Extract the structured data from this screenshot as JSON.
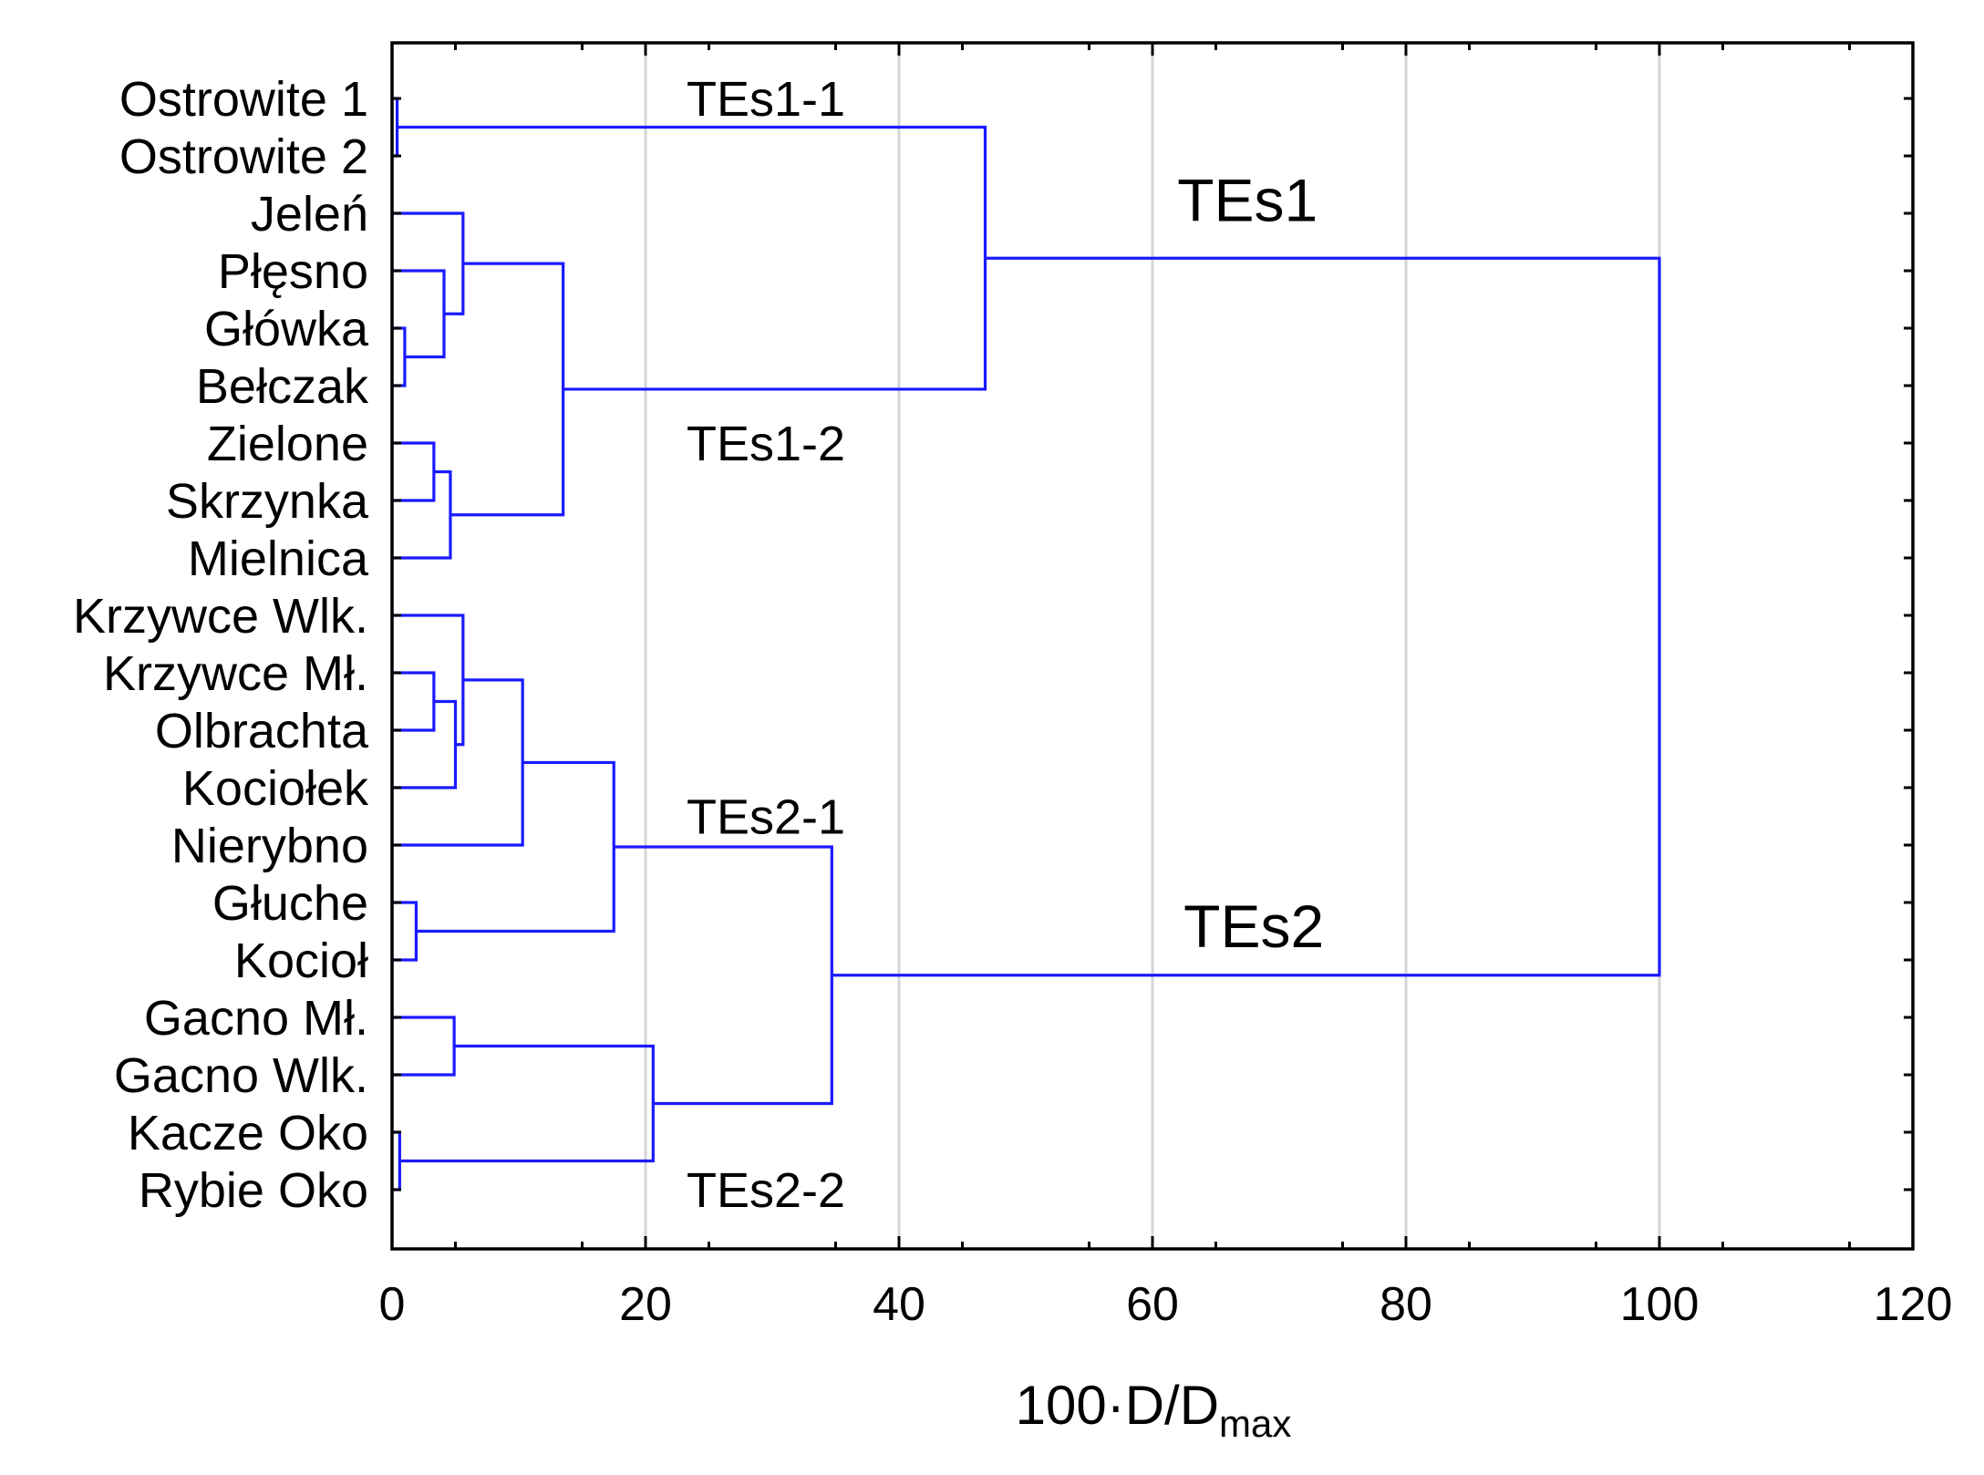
{
  "chart_data": {
    "type": "dendrogram",
    "orientation": "horizontal",
    "xlabel_main": "100·D/D",
    "xlabel_sub": "max",
    "xlim": [
      0,
      120
    ],
    "xticks": [
      0,
      20,
      40,
      60,
      80,
      100,
      120
    ],
    "grid": "vertical",
    "leaves": [
      "Ostrowite 1",
      "Ostrowite 2",
      "Jeleń",
      "Płęsno",
      "Główka",
      "Bełczak",
      "Zielone",
      "Skrzynka",
      "Mielnica",
      "Krzywce Wlk.",
      "Krzywce Mł.",
      "Olbrachta",
      "Kociołek",
      "Nierybno",
      "Głuche",
      "Kocioł",
      "Gacno Mł.",
      "Gacno Wlk.",
      "Kacze Oko",
      "Rybie Oko"
    ],
    "merges": [
      {
        "left": "L0",
        "right": "L1",
        "height": 0.4,
        "id": "C1"
      },
      {
        "left": "L4",
        "right": "L5",
        "height": 1.0,
        "id": "C2"
      },
      {
        "left": "L3",
        "right": "C2",
        "height": 4.1,
        "id": "C3"
      },
      {
        "left": "L2",
        "right": "C3",
        "height": 5.6,
        "id": "C4"
      },
      {
        "left": "L6",
        "right": "L7",
        "height": 3.3,
        "id": "C5"
      },
      {
        "left": "C5",
        "right": "L8",
        "height": 4.6,
        "id": "C6"
      },
      {
        "left": "C4",
        "right": "C6",
        "height": 13.5,
        "id": "C7"
      },
      {
        "left": "C1",
        "right": "C7",
        "height": 46.8,
        "id": "C8"
      },
      {
        "left": "L10",
        "right": "L11",
        "height": 3.3,
        "id": "C9"
      },
      {
        "left": "C9",
        "right": "L12",
        "height": 5.0,
        "id": "C10"
      },
      {
        "left": "L9",
        "right": "C10",
        "height": 5.6,
        "id": "C11"
      },
      {
        "left": "C11",
        "right": "L13",
        "height": 10.3,
        "id": "C12"
      },
      {
        "left": "L14",
        "right": "L15",
        "height": 1.9,
        "id": "C13"
      },
      {
        "left": "C12",
        "right": "C13",
        "height": 17.5,
        "id": "C14"
      },
      {
        "left": "L16",
        "right": "L17",
        "height": 4.9,
        "id": "C15"
      },
      {
        "left": "L18",
        "right": "L19",
        "height": 0.6,
        "id": "C16"
      },
      {
        "left": "C15",
        "right": "C16",
        "height": 20.6,
        "id": "C17"
      },
      {
        "left": "C14",
        "right": "C17",
        "height": 34.7,
        "id": "C18"
      },
      {
        "left": "C8",
        "right": "C18",
        "height": 100.0,
        "id": "C19"
      }
    ],
    "annotations": [
      {
        "text": "TEs1-1",
        "x": 29.5,
        "leaf_pos": 0.0,
        "size": "small"
      },
      {
        "text": "TEs1-2",
        "x": 29.5,
        "leaf_pos": 6.0,
        "size": "small"
      },
      {
        "text": "TEs1",
        "x": 67.5,
        "leaf_pos": 1.75,
        "size": "big"
      },
      {
        "text": "TEs2-1",
        "x": 29.5,
        "leaf_pos": 12.5,
        "size": "small"
      },
      {
        "text": "TEs2",
        "x": 68.0,
        "leaf_pos": 14.4,
        "size": "big"
      },
      {
        "text": "TEs2-2",
        "x": 29.5,
        "leaf_pos": 19.0,
        "size": "small"
      }
    ]
  }
}
